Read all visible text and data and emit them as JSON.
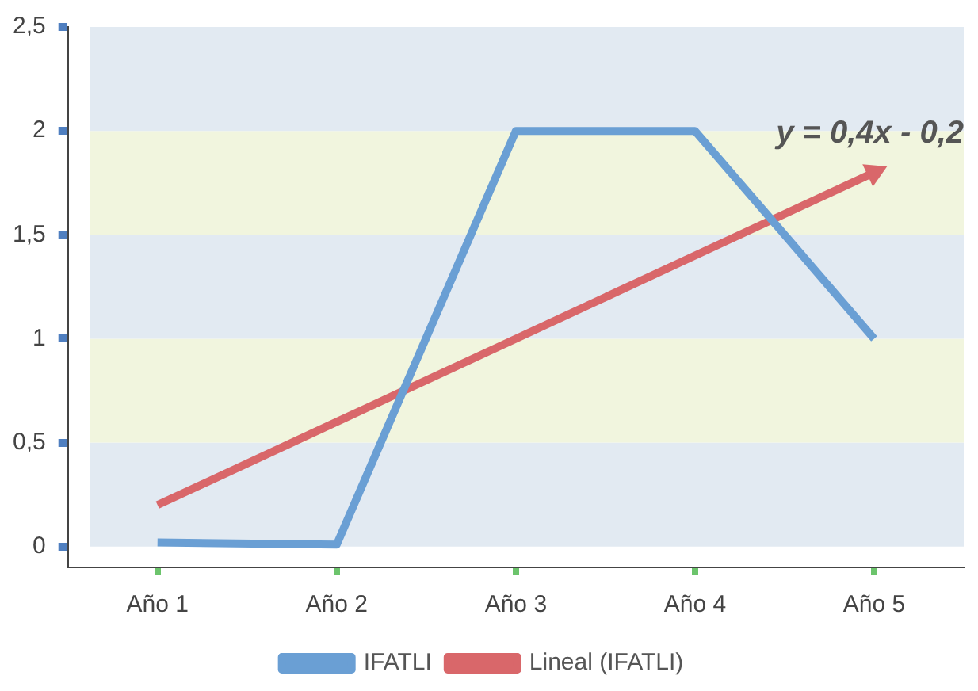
{
  "chart_data": {
    "type": "line",
    "categories": [
      "Año 1",
      "Año 2",
      "Año 3",
      "Año 4",
      "Año 5"
    ],
    "series": [
      {
        "name": "IFATLI",
        "color": "#6a9fd4",
        "values": [
          0.02,
          0.01,
          2,
          2,
          1
        ]
      },
      {
        "name": "Lineal (IFATLI)",
        "color": "#d9676a",
        "type": "line",
        "x": [
          "Año 1",
          "Año 2",
          "Año 3",
          "Año 4",
          "Año 5"
        ],
        "values": [
          0.2,
          0.6,
          1,
          1.4,
          1.8
        ]
      }
    ],
    "ylim": [
      -0.1,
      2.5
    ],
    "yticks": [
      0,
      {
        "value": 0.5,
        "label": "0,5"
      },
      1,
      {
        "value": 1.5,
        "label": "1,5"
      },
      2,
      {
        "value": 2.5,
        "label": "2,5"
      }
    ],
    "bands": [
      {
        "axis": "y",
        "from": 0,
        "to": 0.5,
        "color": "#e2eaf2"
      },
      {
        "axis": "y",
        "from": 0.5,
        "to": 1,
        "color": "#f1f5de"
      },
      {
        "axis": "y",
        "from": 1,
        "to": 1.5,
        "color": "#e2eaf2"
      },
      {
        "axis": "y",
        "from": 1.5,
        "to": 2,
        "color": "#f1f5de"
      },
      {
        "axis": "y",
        "from": 2,
        "to": 2.5,
        "color": "#e2eaf2"
      }
    ],
    "annotations": [
      "y = 0,4x - 0,2"
    ],
    "grid": false,
    "legend": "bottom",
    "marker": "none"
  }
}
